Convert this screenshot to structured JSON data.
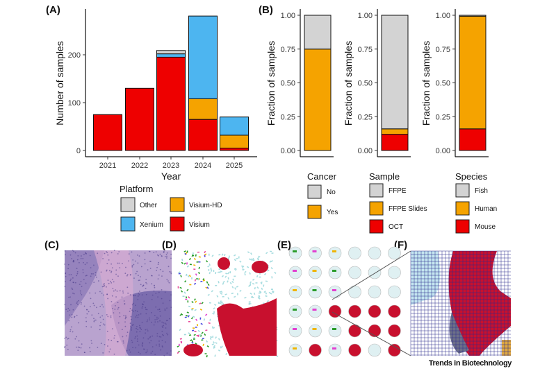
{
  "panels": {
    "a": "(A)",
    "b": "(B)",
    "c": "(C)",
    "d": "(D)",
    "e": "(E)",
    "f": "(F)"
  },
  "credit": "Trends in Biotechnology",
  "colors": {
    "Other": "#d3d3d3",
    "Xenium": "#4db5f0",
    "Visium-HD": "#f5a300",
    "Visium": "#ee0000",
    "No": "#d3d3d3",
    "Yes": "#f5a300",
    "FFPE": "#d3d3d3",
    "FFPE Slides": "#f5a300",
    "OCT": "#ee0000",
    "Fish": "#d3d3d3",
    "Human": "#f5a300",
    "Mouse": "#ee0000"
  },
  "chart_data": [
    {
      "type": "bar",
      "stacked": true,
      "xlabel": "Year",
      "ylabel": "Number of samples",
      "categories": [
        "2021",
        "2022",
        "2023",
        "2024",
        "2025"
      ],
      "yticks": [
        "0",
        "100",
        "200"
      ],
      "ylim": [
        0,
        290
      ],
      "legend_title": "Platform",
      "legend_entries": [
        "Other",
        "Visium-HD",
        "Xenium",
        "Visium"
      ],
      "series": [
        {
          "name": "Visium",
          "values": [
            75,
            130,
            195,
            65,
            5
          ]
        },
        {
          "name": "Visium-HD",
          "values": [
            0,
            0,
            0,
            43,
            27
          ]
        },
        {
          "name": "Xenium",
          "values": [
            0,
            0,
            7,
            173,
            38
          ]
        },
        {
          "name": "Other",
          "values": [
            0,
            0,
            7,
            0,
            0
          ]
        }
      ]
    },
    {
      "type": "bar",
      "stacked": true,
      "ylabel": "Fraction of samples",
      "yticks": [
        "0.00",
        "0.25",
        "0.50",
        "0.75",
        "1.00"
      ],
      "ylim": [
        0,
        1
      ],
      "legend_title": "Cancer",
      "legend_entries": [
        "No",
        "Yes"
      ],
      "series": [
        {
          "name": "Yes",
          "values": [
            0.75
          ]
        },
        {
          "name": "No",
          "values": [
            0.25
          ]
        }
      ]
    },
    {
      "type": "bar",
      "stacked": true,
      "ylabel": "Fraction of samples",
      "yticks": [
        "0.00",
        "0.25",
        "0.50",
        "0.75",
        "1.00"
      ],
      "ylim": [
        0,
        1
      ],
      "legend_title": "Sample",
      "legend_entries": [
        "FFPE",
        "FFPE Slides",
        "OCT"
      ],
      "series": [
        {
          "name": "OCT",
          "values": [
            0.12
          ]
        },
        {
          "name": "FFPE Slides",
          "values": [
            0.04
          ]
        },
        {
          "name": "FFPE",
          "values": [
            0.84
          ]
        }
      ]
    },
    {
      "type": "bar",
      "stacked": true,
      "ylabel": "Fraction of samples",
      "yticks": [
        "0.00",
        "0.25",
        "0.50",
        "0.75",
        "1.00"
      ],
      "ylim": [
        0,
        1
      ],
      "legend_title": "Species",
      "legend_entries": [
        "Fish",
        "Human",
        "Mouse"
      ],
      "series": [
        {
          "name": "Mouse",
          "values": [
            0.16
          ]
        },
        {
          "name": "Human",
          "values": [
            0.833
          ]
        },
        {
          "name": "Fish",
          "values": [
            0.007
          ]
        }
      ]
    }
  ]
}
